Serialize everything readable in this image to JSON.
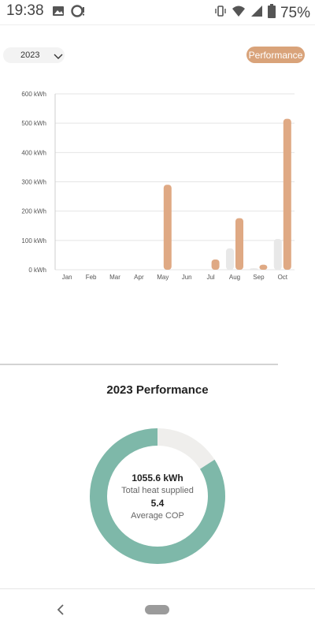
{
  "status": {
    "time": "19:38",
    "battery": "75%"
  },
  "filters": {
    "year": "2023",
    "performance_button": "Performance"
  },
  "chart_data": {
    "type": "bar",
    "categories": [
      "Jan",
      "Feb",
      "Mar",
      "Apr",
      "May",
      "Jun",
      "Jul",
      "Aug",
      "Sep",
      "Oct"
    ],
    "series": [
      {
        "values": [
          0,
          0,
          0,
          0,
          0,
          0,
          0,
          73,
          5,
          105
        ],
        "color": "#e8e8e8"
      },
      {
        "values": [
          0,
          0,
          0,
          0,
          290,
          0,
          35,
          176,
          17,
          515
        ],
        "color": "#dfa984"
      }
    ],
    "y_ticks": [
      "0 kWh",
      "100 kWh",
      "200 kWh",
      "300 kWh",
      "400 kWh",
      "500 kWh",
      "600 kWh"
    ],
    "ylim": [
      0,
      600
    ],
    "grid": true
  },
  "summary": {
    "title": "2023 Performance",
    "total_heat": "1055.6 kWh",
    "total_heat_label": "Total heat supplied",
    "avg_cop": "5.4",
    "avg_cop_label": "Average COP",
    "donut": {
      "main_fraction": 0.84,
      "main_color": "#7eb8a9",
      "rest_color": "#efeeec"
    }
  },
  "icons": {
    "status_left": [
      "image-icon",
      "sync-alert-icon"
    ],
    "status_right": [
      "vibrate-icon",
      "wifi-icon",
      "signal-icon",
      "battery-icon"
    ],
    "year_chevron": "chevron-down-icon",
    "nav_back": "back-icon",
    "nav_home": "home-pill-icon"
  }
}
